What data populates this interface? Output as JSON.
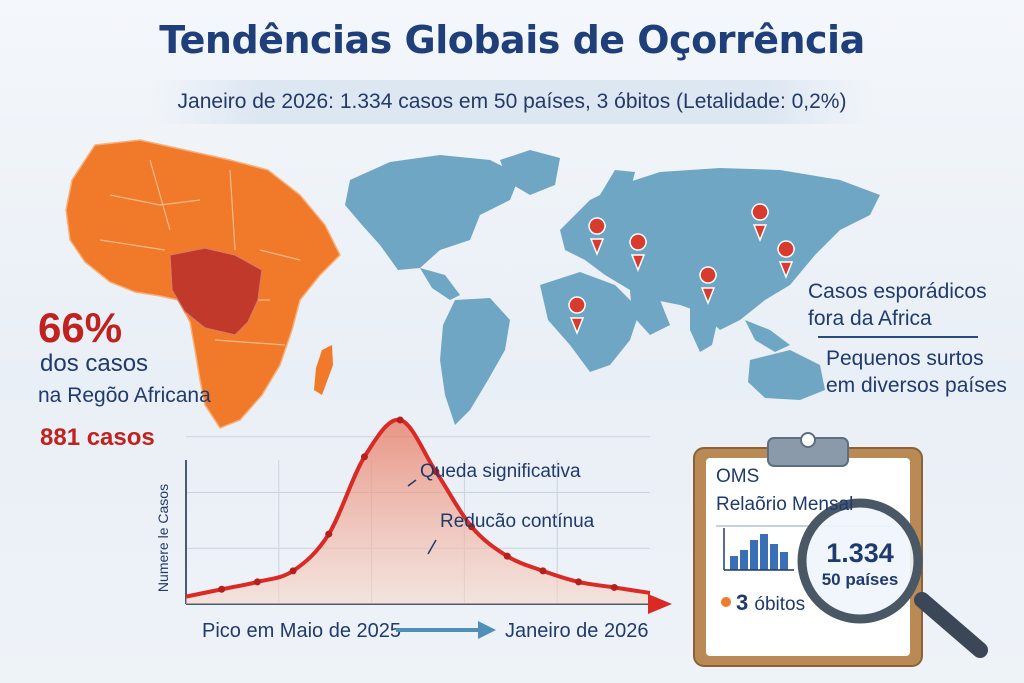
{
  "header": {
    "title": "Tendências Globais de Oçorrência",
    "subtitle": "Janeiro de 2026: 1.334 casos em 50 países, 3 óbitos (Letalidade: 0,2%)"
  },
  "africa_stats": {
    "percent": "66%",
    "line1": "dos casos",
    "line2": "na Regõo Africana",
    "cases": "881 casos"
  },
  "map_notes": {
    "note1_line1": "Casos esporádicos",
    "note1_line2": "fora da Africa",
    "note2_line1": "Pequenos surtos",
    "note2_line2": "em diversos países"
  },
  "chart": {
    "y_title": "Numere le Casos",
    "annotation_fall": "Queda significativa",
    "annotation_reduction": "Reducão contínua",
    "start_caption": "Pico em Maio de 2025",
    "end_caption": "Janeiro de 2026"
  },
  "report": {
    "org": "OMS",
    "title": "Relaõrio Mensal",
    "cases": "1.334",
    "countries": "50 países",
    "deaths_number": "3",
    "deaths_label": "óbitos"
  },
  "colors": {
    "africa_orange": "#f07a2a",
    "central_africa_red": "#c0392b",
    "world_blue": "#6fa6c4",
    "marker_red": "#d93a2e",
    "curve_red": "#d92a26",
    "title_navy": "#1f3f7a"
  },
  "icons": {
    "map_marker": "map-pin-icon",
    "magnifier": "magnifying-glass-icon",
    "clipboard": "clipboard-icon"
  },
  "chart_data": {
    "type": "area",
    "x_start": "Pico em Maio de 2025",
    "x_end": "Janeiro de 2026",
    "values": [
      4,
      8,
      12,
      18,
      38,
      80,
      100,
      72,
      42,
      26,
      18,
      12,
      9,
      6
    ],
    "ylabel": "Numere le Casos",
    "grid": true
  }
}
